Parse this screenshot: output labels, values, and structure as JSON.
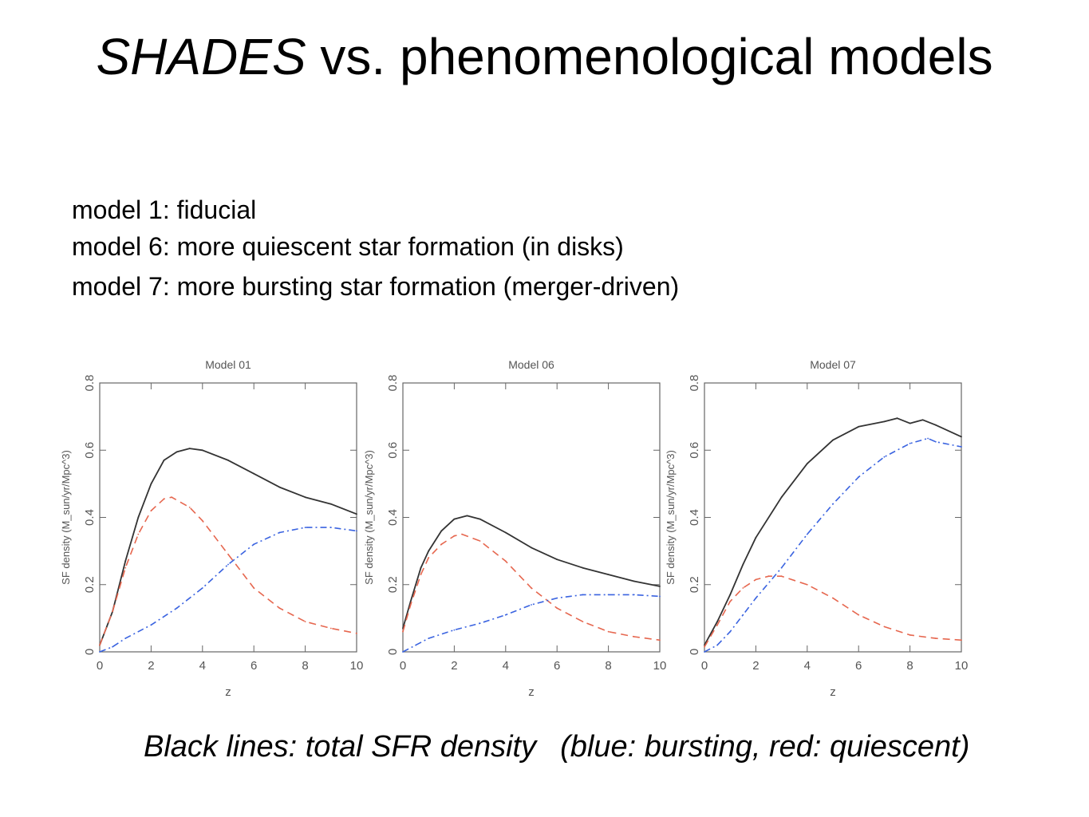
{
  "slide": {
    "title_italic": "SHADES",
    "title_rest": " vs. phenomenological models",
    "notes": [
      "model 1: fiducial",
      "model 6: more quiescent star formation (in disks)",
      "model 7: more bursting star formation (merger-driven)"
    ],
    "caption_part1": "Black lines: total SFR density",
    "caption_part2": "(blue: bursting, red: quiescent)"
  },
  "colors": {
    "total": "#333333",
    "bursting": "#3a63e0",
    "quiescent": "#e6674f"
  },
  "chart_data": [
    {
      "type": "line",
      "title": "Model 01",
      "xlabel": "z",
      "ylabel": "SF density (M_sun/yr/Mpc^3)",
      "xlim": [
        0,
        10
      ],
      "ylim": [
        0,
        0.8
      ],
      "xticks": [
        0,
        2,
        4,
        6,
        8,
        10
      ],
      "yticks": [
        0,
        0.2,
        0.4,
        0.6,
        0.8
      ],
      "grid": false,
      "series": [
        {
          "key": "total",
          "style": "solid",
          "x": [
            0,
            0.5,
            1,
            1.5,
            2,
            2.5,
            3,
            3.5,
            4,
            5,
            6,
            7,
            8,
            9,
            10
          ],
          "y": [
            0.02,
            0.12,
            0.27,
            0.4,
            0.5,
            0.57,
            0.595,
            0.605,
            0.6,
            0.57,
            0.53,
            0.49,
            0.46,
            0.44,
            0.41
          ]
        },
        {
          "key": "quiescent",
          "style": "dashed",
          "x": [
            0,
            0.5,
            1,
            1.5,
            2,
            2.5,
            2.8,
            3.5,
            4,
            5,
            6,
            7,
            8,
            9,
            10
          ],
          "y": [
            0.02,
            0.12,
            0.25,
            0.35,
            0.42,
            0.455,
            0.46,
            0.43,
            0.39,
            0.29,
            0.19,
            0.13,
            0.09,
            0.07,
            0.055
          ]
        },
        {
          "key": "bursting",
          "style": "dashdot",
          "x": [
            0,
            0.5,
            1,
            2,
            3,
            4,
            5,
            6,
            7,
            8,
            9,
            10
          ],
          "y": [
            0,
            0.015,
            0.04,
            0.08,
            0.13,
            0.19,
            0.26,
            0.32,
            0.355,
            0.37,
            0.37,
            0.36
          ]
        }
      ]
    },
    {
      "type": "line",
      "title": "Model 06",
      "xlabel": "z",
      "ylabel": "SF density (M_sun/yr/Mpc^3)",
      "xlim": [
        0,
        10
      ],
      "ylim": [
        0,
        0.8
      ],
      "xticks": [
        0,
        2,
        4,
        6,
        8,
        10
      ],
      "yticks": [
        0,
        0.2,
        0.4,
        0.6,
        0.8
      ],
      "grid": false,
      "series": [
        {
          "key": "total",
          "style": "solid",
          "x": [
            0,
            0.3,
            0.7,
            1,
            1.5,
            2,
            2.5,
            3,
            4,
            5,
            6,
            7,
            8,
            9,
            10
          ],
          "y": [
            0.07,
            0.15,
            0.25,
            0.3,
            0.36,
            0.395,
            0.405,
            0.395,
            0.355,
            0.31,
            0.275,
            0.25,
            0.23,
            0.21,
            0.195
          ]
        },
        {
          "key": "quiescent",
          "style": "dashed",
          "x": [
            0,
            0.3,
            0.7,
            1,
            1.5,
            2,
            2.3,
            3,
            4,
            5,
            6,
            7,
            8,
            9,
            10
          ],
          "y": [
            0.06,
            0.14,
            0.23,
            0.28,
            0.32,
            0.345,
            0.35,
            0.33,
            0.27,
            0.19,
            0.13,
            0.09,
            0.06,
            0.045,
            0.035
          ]
        },
        {
          "key": "bursting",
          "style": "dashdot",
          "x": [
            0,
            0.5,
            1,
            2,
            3,
            4,
            5,
            6,
            7,
            8,
            9,
            10
          ],
          "y": [
            0,
            0.02,
            0.04,
            0.065,
            0.085,
            0.11,
            0.14,
            0.16,
            0.17,
            0.17,
            0.17,
            0.165
          ]
        }
      ]
    },
    {
      "type": "line",
      "title": "Model 07",
      "xlabel": "z",
      "ylabel": "SF density (M_sun/yr/Mpc^3)",
      "xlim": [
        0,
        10
      ],
      "ylim": [
        0,
        0.8
      ],
      "xticks": [
        0,
        2,
        4,
        6,
        8,
        10
      ],
      "yticks": [
        0,
        0.2,
        0.4,
        0.6,
        0.8
      ],
      "grid": false,
      "series": [
        {
          "key": "total",
          "style": "solid",
          "x": [
            0,
            0.5,
            1,
            1.5,
            2,
            3,
            4,
            5,
            6,
            7,
            7.5,
            8,
            8.5,
            9,
            10
          ],
          "y": [
            0.02,
            0.09,
            0.17,
            0.26,
            0.34,
            0.46,
            0.56,
            0.63,
            0.67,
            0.685,
            0.695,
            0.68,
            0.69,
            0.675,
            0.64
          ]
        },
        {
          "key": "quiescent",
          "style": "dashed",
          "x": [
            0,
            0.5,
            1,
            1.5,
            2,
            2.5,
            3,
            4,
            5,
            6,
            7,
            8,
            9,
            10
          ],
          "y": [
            0.015,
            0.08,
            0.15,
            0.19,
            0.215,
            0.225,
            0.225,
            0.2,
            0.16,
            0.11,
            0.075,
            0.05,
            0.04,
            0.035
          ]
        },
        {
          "key": "bursting",
          "style": "dashdot",
          "x": [
            0,
            0.5,
            1,
            1.5,
            2,
            3,
            4,
            5,
            6,
            7,
            8,
            8.7,
            9,
            10
          ],
          "y": [
            0,
            0.02,
            0.06,
            0.11,
            0.16,
            0.25,
            0.35,
            0.44,
            0.52,
            0.58,
            0.62,
            0.635,
            0.625,
            0.61
          ]
        }
      ]
    }
  ]
}
